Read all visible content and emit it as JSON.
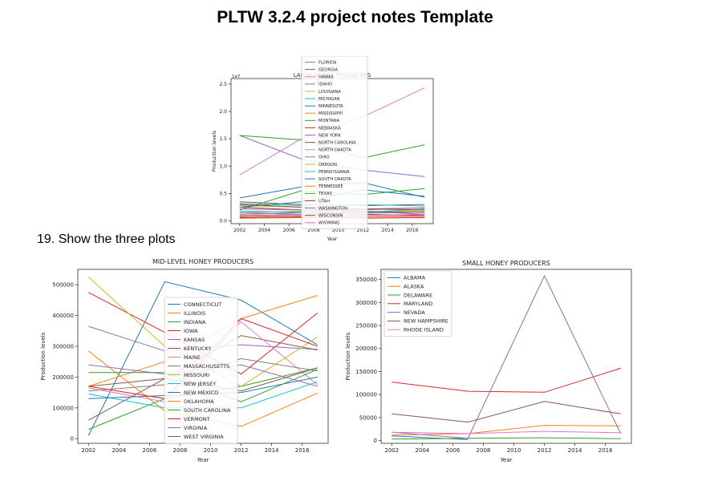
{
  "slide": {
    "title": "PLTW 3.2.4 project  notes Template",
    "caption": "19. Show the three plots"
  },
  "chart_data": [
    {
      "id": "large",
      "type": "line",
      "title": "LARGE HONEY PRODUCERS",
      "xlabel": "Year",
      "ylabel": "Production levels",
      "y_offset_label": "1e7",
      "xlim": [
        2001.3,
        2017.7
      ],
      "ylim": [
        -0.05,
        2.6
      ],
      "y_scale_note": "values in units of 1e7",
      "x_ticks": [
        2002,
        2004,
        2006,
        2008,
        2010,
        2012,
        2014,
        2016
      ],
      "y_ticks": [
        "0.0",
        "0.5",
        "1.0",
        "1.5",
        "2.0",
        "2.5"
      ],
      "y_tick_values": [
        0,
        0.5,
        1.0,
        1.5,
        2.0,
        2.5
      ],
      "grid": false,
      "legend_position": "top-center",
      "x": [
        2002,
        2007,
        2012,
        2017
      ],
      "series": [
        {
          "name": "FLORIDA",
          "color": "#9467bd",
          "values": [
            1.56,
            1.13,
            0.93,
            0.81
          ]
        },
        {
          "name": "GEORGIA",
          "color": "#8c564b",
          "values": [
            0.35,
            0.3,
            0.28,
            0.3
          ]
        },
        {
          "name": "HAWAII",
          "color": "#e377c2",
          "values": [
            0.05,
            0.08,
            0.1,
            0.12
          ]
        },
        {
          "name": "IDAHO",
          "color": "#7f7f7f",
          "values": [
            0.3,
            0.25,
            0.2,
            0.24
          ]
        },
        {
          "name": "LOUISIANA",
          "color": "#bcbd22",
          "values": [
            0.28,
            0.25,
            0.22,
            0.2
          ]
        },
        {
          "name": "MICHIGAN",
          "color": "#17becf",
          "values": [
            0.32,
            0.28,
            0.3,
            0.27
          ]
        },
        {
          "name": "MINNESOTA",
          "color": "#1f77b4",
          "values": [
            0.42,
            0.62,
            0.7,
            0.43
          ]
        },
        {
          "name": "MISSISSIPPI",
          "color": "#ff7f0e",
          "values": [
            0.1,
            0.12,
            0.15,
            0.18
          ]
        },
        {
          "name": "MONTANA",
          "color": "#2ca02c",
          "values": [
            0.2,
            0.55,
            0.48,
            0.59
          ]
        },
        {
          "name": "NEBRASKA",
          "color": "#d62728",
          "values": [
            0.25,
            0.2,
            0.18,
            0.15
          ]
        },
        {
          "name": "NEW YORK",
          "color": "#9467bd",
          "values": [
            0.22,
            0.2,
            0.22,
            0.24
          ]
        },
        {
          "name": "NORTH CAROLINA",
          "color": "#8c564b",
          "values": [
            0.08,
            0.1,
            0.12,
            0.1
          ]
        },
        {
          "name": "NORTH DAKOTA",
          "color": "#e377c2",
          "values": [
            0.84,
            1.5,
            1.9,
            2.43
          ]
        },
        {
          "name": "OHIO",
          "color": "#7f7f7f",
          "values": [
            0.12,
            0.15,
            0.14,
            0.16
          ]
        },
        {
          "name": "OREGON",
          "color": "#bcbd22",
          "values": [
            0.15,
            0.18,
            0.17,
            0.2
          ]
        },
        {
          "name": "PENNSYLVANIA",
          "color": "#17becf",
          "values": [
            0.18,
            0.16,
            0.15,
            0.22
          ]
        },
        {
          "name": "SOUTH DAKOTA",
          "color": "#1f77b4",
          "values": [
            0.25,
            0.35,
            0.57,
            0.45
          ]
        },
        {
          "name": "TENNESSEE",
          "color": "#ff7f0e",
          "values": [
            0.05,
            0.06,
            0.07,
            0.08
          ]
        },
        {
          "name": "TEXAS",
          "color": "#2ca02c",
          "values": [
            1.56,
            1.48,
            1.15,
            1.39
          ]
        },
        {
          "name": "UTAH",
          "color": "#d62728",
          "values": [
            0.06,
            0.07,
            0.05,
            0.06
          ]
        },
        {
          "name": "WASHINGTON",
          "color": "#9467bd",
          "values": [
            0.15,
            0.12,
            0.18,
            0.12
          ]
        },
        {
          "name": "WISCONSIN",
          "color": "#8c564b",
          "values": [
            0.3,
            0.25,
            0.22,
            0.2
          ]
        },
        {
          "name": "WYOMING",
          "color": "#e377c2",
          "values": [
            0.1,
            0.12,
            0.08,
            0.09
          ]
        }
      ]
    },
    {
      "id": "mid",
      "type": "line",
      "title": "MID-LEVEL HONEY PRODUCERS",
      "xlabel": "Year",
      "ylabel": "Production levels",
      "xlim": [
        2001.3,
        2017.7
      ],
      "ylim": [
        -15000,
        550000
      ],
      "x_ticks": [
        2002,
        2004,
        2006,
        2008,
        2010,
        2012,
        2014,
        2016
      ],
      "y_ticks": [
        "0",
        "100000",
        "200000",
        "300000",
        "400000",
        "500000"
      ],
      "y_tick_values": [
        0,
        100000,
        200000,
        300000,
        400000,
        500000
      ],
      "grid": false,
      "legend_position": "center",
      "x": [
        2002,
        2007,
        2012,
        2017
      ],
      "series": [
        {
          "name": "CONNECTICUT",
          "color": "#1f77b4",
          "values": [
            10000,
            510000,
            450000,
            305000
          ]
        },
        {
          "name": "ILLINOIS",
          "color": "#ff7f0e",
          "values": [
            170000,
            250000,
            390000,
            465000
          ]
        },
        {
          "name": "INDIANA",
          "color": "#2ca02c",
          "values": [
            30000,
            130000,
            170000,
            230000
          ]
        },
        {
          "name": "IOWA",
          "color": "#d62728",
          "values": [
            475000,
            345000,
            210000,
            408000
          ]
        },
        {
          "name": "KANSAS",
          "color": "#9467bd",
          "values": [
            365000,
            285000,
            305000,
            290000
          ]
        },
        {
          "name": "KENTUCKY",
          "color": "#8c564b",
          "values": [
            60000,
            195000,
            335000,
            288000
          ]
        },
        {
          "name": "MAINE",
          "color": "#e377c2",
          "values": [
            165000,
            120000,
            380000,
            175000
          ]
        },
        {
          "name": "MASSACHUSETTS",
          "color": "#7f7f7f",
          "values": [
            155000,
            175000,
            260000,
            220000
          ]
        },
        {
          "name": "MISSOURI",
          "color": "#bcbd22",
          "values": [
            525000,
            300000,
            170000,
            330000
          ]
        },
        {
          "name": "NEW JERSEY",
          "color": "#17becf",
          "values": [
            145000,
            100000,
            100000,
            185000
          ]
        },
        {
          "name": "NEW MEXICO",
          "color": "#1f77b4",
          "values": [
            130000,
            140000,
            150000,
            200000
          ]
        },
        {
          "name": "OKLAHOMA",
          "color": "#ff7f0e",
          "values": [
            285000,
            90000,
            40000,
            148000
          ]
        },
        {
          "name": "SOUTH CAROLINA",
          "color": "#2ca02c",
          "values": [
            215000,
            215000,
            120000,
            225000
          ]
        },
        {
          "name": "VERMONT",
          "color": "#d62728",
          "values": [
            170000,
            130000,
            390000,
            300000
          ]
        },
        {
          "name": "VIRGINIA",
          "color": "#9467bd",
          "values": [
            240000,
            210000,
            240000,
            170000
          ]
        },
        {
          "name": "WEST VIRGINIA",
          "color": "#8c564b",
          "values": [
            170000,
            195000,
            155000,
            230000
          ]
        }
      ]
    },
    {
      "id": "small",
      "type": "line",
      "title": "SMALL HONEY PRODUCERS",
      "xlabel": "Year",
      "ylabel": "Production levels",
      "xlim": [
        2001.3,
        2017.7
      ],
      "ylim": [
        -6000,
        372000
      ],
      "x_ticks": [
        2002,
        2004,
        2006,
        2008,
        2010,
        2012,
        2014,
        2016
      ],
      "y_ticks": [
        "0",
        "50000",
        "100000",
        "150000",
        "200000",
        "250000",
        "300000",
        "350000"
      ],
      "y_tick_values": [
        0,
        50000,
        100000,
        150000,
        200000,
        250000,
        300000,
        350000
      ],
      "grid": false,
      "legend_position": "upper left",
      "x": [
        2002,
        2007,
        2012,
        2017
      ],
      "series": [
        {
          "name": "ALBAMA",
          "color": "#1f77b4",
          "values": [
            10000,
            2000,
            null,
            null
          ]
        },
        {
          "name": "ALASKA",
          "color": "#ff7f0e",
          "values": [
            12000,
            15000,
            33000,
            32000
          ]
        },
        {
          "name": "DELAWARE",
          "color": "#2ca02c",
          "values": [
            3000,
            5000,
            6000,
            4000
          ]
        },
        {
          "name": "MARYLAND",
          "color": "#d62728",
          "values": [
            127000,
            107000,
            105000,
            157000
          ]
        },
        {
          "name": "NEVADA",
          "color": "#9467bd",
          "values": [
            18000,
            5000,
            358000,
            15000
          ]
        },
        {
          "name": "NEW HAMPSHIRE",
          "color": "#8c564b",
          "values": [
            58000,
            40000,
            85000,
            58000
          ]
        },
        {
          "name": "RHODE ISLAND",
          "color": "#e377c2",
          "values": [
            18000,
            15000,
            20000,
            17000
          ]
        }
      ]
    }
  ]
}
